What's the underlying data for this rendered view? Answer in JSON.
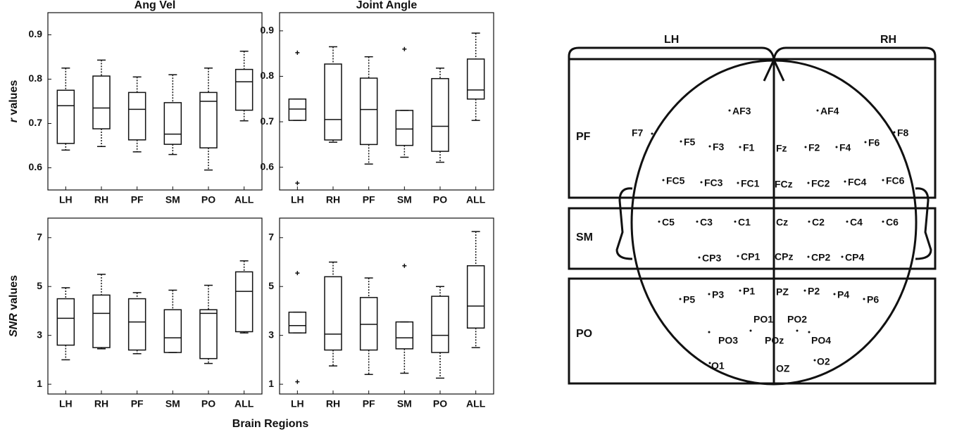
{
  "chart_data": [
    {
      "type": "box",
      "title": "Ang Vel",
      "ylabel": {
        "italic": "r",
        "text": "values"
      },
      "categories": [
        "LH",
        "RH",
        "PF",
        "SM",
        "PO",
        "ALL"
      ],
      "ylim": [
        0.55,
        0.95
      ],
      "yticks": [
        0.6,
        0.7,
        0.8,
        0.9
      ],
      "boxes": [
        {
          "whislo": 0.64,
          "q1": 0.655,
          "med": 0.74,
          "q3": 0.775,
          "whishi": 0.825
        },
        {
          "whislo": 0.648,
          "q1": 0.688,
          "med": 0.735,
          "q3": 0.807,
          "whishi": 0.843
        },
        {
          "whislo": 0.636,
          "q1": 0.663,
          "med": 0.732,
          "q3": 0.77,
          "whishi": 0.805
        },
        {
          "whislo": 0.63,
          "q1": 0.653,
          "med": 0.676,
          "q3": 0.747,
          "whishi": 0.81
        },
        {
          "whislo": 0.595,
          "q1": 0.645,
          "med": 0.75,
          "q3": 0.77,
          "whishi": 0.825
        },
        {
          "whislo": 0.706,
          "q1": 0.73,
          "med": 0.794,
          "q3": 0.822,
          "whishi": 0.863
        }
      ]
    },
    {
      "type": "box",
      "title": "Joint Angle",
      "categories": [
        "LH",
        "RH",
        "PF",
        "SM",
        "PO",
        "ALL"
      ],
      "ylim": [
        0.55,
        0.94
      ],
      "yticks": [
        0.6,
        0.7,
        0.8,
        0.9
      ],
      "boxes": [
        {
          "whislo": 0.703,
          "q1": 0.703,
          "med": 0.728,
          "q3": 0.75,
          "whishi": 0.75,
          "fliers": [
            0.852,
            0.565
          ]
        },
        {
          "whislo": 0.655,
          "q1": 0.66,
          "med": 0.705,
          "q3": 0.827,
          "whishi": 0.865
        },
        {
          "whislo": 0.607,
          "q1": 0.65,
          "med": 0.727,
          "q3": 0.796,
          "whishi": 0.843
        },
        {
          "whislo": 0.622,
          "q1": 0.648,
          "med": 0.684,
          "q3": 0.725,
          "whishi": 0.725,
          "fliers": [
            0.86
          ]
        },
        {
          "whislo": 0.611,
          "q1": 0.635,
          "med": 0.69,
          "q3": 0.795,
          "whishi": 0.818
        },
        {
          "whislo": 0.703,
          "q1": 0.75,
          "med": 0.77,
          "q3": 0.838,
          "whishi": 0.895
        }
      ]
    },
    {
      "type": "box",
      "ylabel": {
        "italic": "SNR",
        "text": "values"
      },
      "categories": [
        "LH",
        "RH",
        "PF",
        "SM",
        "PO",
        "ALL"
      ],
      "ylim": [
        0.6,
        7.8
      ],
      "yticks": [
        1,
        3,
        5,
        7
      ],
      "boxes": [
        {
          "whislo": 2.0,
          "q1": 2.6,
          "med": 3.7,
          "q3": 4.5,
          "whishi": 4.95
        },
        {
          "whislo": 2.45,
          "q1": 2.5,
          "med": 3.9,
          "q3": 4.65,
          "whishi": 5.5
        },
        {
          "whislo": 2.25,
          "q1": 2.4,
          "med": 3.55,
          "q3": 4.5,
          "whishi": 4.75
        },
        {
          "whislo": 2.3,
          "q1": 2.3,
          "med": 2.9,
          "q3": 4.05,
          "whishi": 4.85
        },
        {
          "whislo": 1.85,
          "q1": 2.05,
          "med": 3.9,
          "q3": 4.05,
          "whishi": 5.05
        },
        {
          "whislo": 3.1,
          "q1": 3.15,
          "med": 4.8,
          "q3": 5.6,
          "whishi": 6.05
        }
      ]
    },
    {
      "type": "box",
      "categories": [
        "LH",
        "RH",
        "PF",
        "SM",
        "PO",
        "ALL"
      ],
      "ylim": [
        0.6,
        7.8
      ],
      "yticks": [
        1,
        3,
        5,
        7
      ],
      "boxes": [
        {
          "whislo": 3.1,
          "q1": 3.1,
          "med": 3.4,
          "q3": 3.95,
          "whishi": 3.95,
          "fliers": [
            5.55,
            1.1
          ]
        },
        {
          "whislo": 1.75,
          "q1": 2.4,
          "med": 3.05,
          "q3": 5.4,
          "whishi": 6.0
        },
        {
          "whislo": 1.4,
          "q1": 2.4,
          "med": 3.45,
          "q3": 4.55,
          "whishi": 5.35
        },
        {
          "whislo": 1.45,
          "q1": 2.45,
          "med": 2.9,
          "q3": 3.55,
          "whishi": 3.55,
          "fliers": [
            5.85
          ]
        },
        {
          "whislo": 1.25,
          "q1": 2.3,
          "med": 3.0,
          "q3": 4.6,
          "whishi": 5.0
        },
        {
          "whislo": 2.5,
          "q1": 3.3,
          "med": 4.2,
          "q3": 5.85,
          "whishi": 7.25
        }
      ]
    }
  ],
  "xlabel": "Brain Regions",
  "diagram": {
    "hemispheres": [
      "LH",
      "RH"
    ],
    "regions": [
      "PF",
      "SM",
      "PO"
    ],
    "electrodes": [
      "AF3",
      "AF4",
      "F7",
      "F8",
      "F5",
      "F3",
      "F1",
      "Fz",
      "F2",
      "F4",
      "F6",
      "FC5",
      "FC3",
      "FC1",
      "FCz",
      "FC2",
      "FC4",
      "FC6",
      "C5",
      "C3",
      "C1",
      "Cz",
      "C2",
      "C4",
      "C6",
      "CP3",
      "CP1",
      "CPz",
      "CP2",
      "CP4",
      "P5",
      "P3",
      "P1",
      "PZ",
      "P2",
      "P4",
      "P6",
      "PO1",
      "PO2",
      "PO3",
      "POz",
      "PO4",
      "O1",
      "OZ",
      "O2"
    ]
  }
}
